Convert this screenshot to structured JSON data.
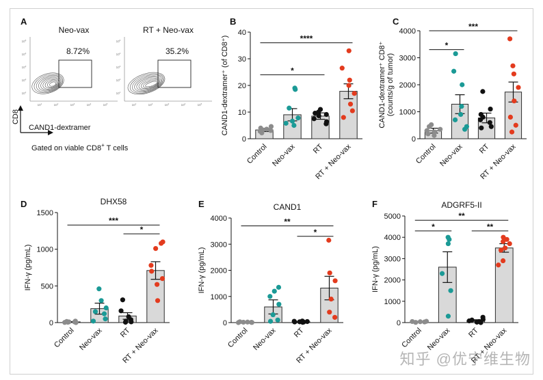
{
  "figure": {
    "watermark": "知乎 @优宁维生物",
    "colors": {
      "bar": "#d9d9d9",
      "edge": "#2b2b2b",
      "control": "#8c8c8c",
      "neovax": "#1b9a96",
      "rt": "#111111",
      "combo": "#e33b1e"
    }
  },
  "panel_a": {
    "letter": "A",
    "flow_labels": [
      "Neo-vax",
      "RT + Neo-vax"
    ],
    "gate_percents": [
      "8.72%",
      "35.2%"
    ],
    "y_axis_label": "CD8",
    "x_axis_label": "CAND1-dextramer",
    "footnote_prefix": "Gated on viable CD8",
    "footnote_sup": "+",
    "footnote_suffix": " T cells",
    "tick_labels": [
      "10",
      "10",
      "10",
      "10",
      "10"
    ],
    "tick_exponents": [
      "1",
      "2",
      "3",
      "4",
      "5"
    ]
  },
  "chart_data": [
    {
      "panel": "B",
      "type": "bar",
      "title": "",
      "ylabel": "CAND1-dextramer⁺ (of CD8⁺)",
      "categories": [
        "Control",
        "Neo-vax",
        "RT",
        "RT + Neo-vax"
      ],
      "values": [
        3.3,
        9.0,
        8.5,
        17.8
      ],
      "errors": [
        0.6,
        2.3,
        1.2,
        2.8
      ],
      "points": [
        [
          2.2,
          2.8,
          3.1,
          3.3,
          3.6,
          4.0,
          4.6
        ],
        [
          5.0,
          5.8,
          6.6,
          7.8,
          11.5,
          18.5,
          19.0
        ],
        [
          5.6,
          6.4,
          7.5,
          8.6,
          9.1,
          9.6,
          10.0,
          11.0
        ],
        [
          8.0,
          10.5,
          13.0,
          17.0,
          20.0,
          22.0,
          26.5,
          33.0
        ]
      ],
      "ylim": [
        0,
        40
      ],
      "yticks": [
        0,
        10,
        20,
        30,
        40
      ],
      "significance": [
        {
          "from": 0,
          "to": 2,
          "label": "*",
          "y": 24
        },
        {
          "from": 0,
          "to": 3,
          "label": "****",
          "y": 36
        }
      ]
    },
    {
      "panel": "C",
      "type": "bar",
      "title": "",
      "ylabel": "CAND1-dextramer⁺ CD8⁺",
      "ylabel2": "(counts/g of tumor)",
      "categories": [
        "Control",
        "Neo-vax",
        "RT",
        "RT + Neo-vax"
      ],
      "values": [
        300,
        1280,
        770,
        1730
      ],
      "errors": [
        90,
        350,
        180,
        370
      ],
      "points": [
        [
          120,
          180,
          250,
          300,
          350,
          450,
          520
        ],
        [
          350,
          450,
          700,
          900,
          1200,
          2000,
          2500,
          3150
        ],
        [
          400,
          450,
          600,
          700,
          800,
          900,
          1100,
          1750
        ],
        [
          250,
          500,
          800,
          1400,
          1900,
          2400,
          2700,
          3700
        ]
      ],
      "ylim": [
        0,
        4000
      ],
      "yticks": [
        0,
        1000,
        2000,
        3000,
        4000
      ],
      "significance": [
        {
          "from": 0,
          "to": 1,
          "label": "*",
          "y": 3300
        },
        {
          "from": 0,
          "to": 3,
          "label": "***",
          "y": 4000
        }
      ]
    },
    {
      "panel": "D",
      "type": "bar",
      "title": "DHX58",
      "ylabel": "IFN-γ (pg/mL)",
      "categories": [
        "Control",
        "Neo-vax",
        "RT",
        "RT + Neo-vax"
      ],
      "values": [
        10,
        190,
        90,
        710
      ],
      "errors": [
        4,
        75,
        45,
        120
      ],
      "points": [
        [
          0,
          2,
          5,
          8,
          10,
          15,
          20
        ],
        [
          20,
          50,
          120,
          150,
          200,
          300,
          460
        ],
        [
          5,
          10,
          20,
          40,
          80,
          160,
          310
        ],
        [
          300,
          520,
          600,
          700,
          780,
          1010,
          1080,
          1100
        ]
      ],
      "ylim": [
        0,
        1500
      ],
      "yticks": [
        0,
        500,
        1000,
        1500
      ],
      "significance": [
        {
          "from": 2,
          "to": 3,
          "label": "*",
          "y": 1210
        },
        {
          "from": 0,
          "to": 3,
          "label": "***",
          "y": 1330
        }
      ]
    },
    {
      "panel": "E",
      "type": "bar",
      "title": "CAND1",
      "ylabel": "IFN-γ (pg/mL)",
      "categories": [
        "Control",
        "Neo-vax",
        "RT",
        "RT + Neo-vax"
      ],
      "values": [
        20,
        600,
        30,
        1320
      ],
      "errors": [
        5,
        270,
        8,
        450
      ],
      "points": [
        [
          0,
          5,
          10,
          15,
          20,
          30
        ],
        [
          50,
          100,
          300,
          700,
          1000,
          1200,
          1350
        ],
        [
          10,
          20,
          25,
          30,
          40,
          50,
          60
        ],
        [
          200,
          400,
          900,
          1600,
          1900,
          3150
        ]
      ],
      "ylim": [
        0,
        4000
      ],
      "yticks": [
        0,
        1000,
        2000,
        3000,
        4000
      ],
      "significance": [
        {
          "from": 2,
          "to": 3,
          "label": "*",
          "y": 3300
        },
        {
          "from": 0,
          "to": 3,
          "label": "**",
          "y": 3700
        }
      ]
    },
    {
      "panel": "F",
      "type": "bar",
      "title": "ADGRF5-II",
      "ylabel": "IFN-γ (pg/mL)",
      "categories": [
        "Control",
        "Neo-vax",
        "RT",
        "RT + Neo-vax"
      ],
      "values": [
        40,
        2600,
        100,
        3500
      ],
      "errors": [
        15,
        720,
        35,
        200
      ],
      "points": [
        [
          10,
          30,
          40,
          50,
          60
        ],
        [
          300,
          1500,
          2300,
          3700,
          3900,
          4000
        ],
        [
          0,
          20,
          50,
          80,
          120,
          150,
          250
        ],
        [
          2700,
          2900,
          3400,
          3500,
          3700,
          3800,
          3900,
          4000
        ]
      ],
      "ylim": [
        0,
        5000
      ],
      "yticks": [
        0,
        1000,
        2000,
        3000,
        4000,
        5000
      ],
      "significance": [
        {
          "from": 0,
          "to": 1,
          "label": "*",
          "y": 4300
        },
        {
          "from": 2,
          "to": 3,
          "label": "**",
          "y": 4300
        },
        {
          "from": 0,
          "to": 3,
          "label": "**",
          "y": 4800
        }
      ]
    }
  ]
}
